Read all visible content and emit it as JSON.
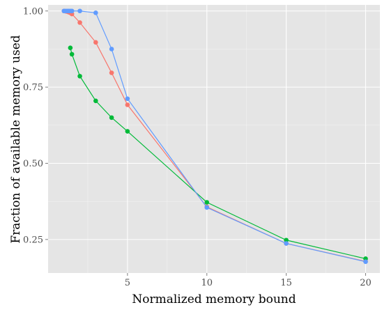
{
  "chart_data": {
    "type": "line",
    "title": "",
    "xlabel": "Normalized memory bound",
    "ylabel": "Fraction of available memory used",
    "xlim": [
      0.0,
      20.9
    ],
    "ylim": [
      0.14,
      1.02
    ],
    "x_ticks": [
      {
        "value": 5,
        "label": "5"
      },
      {
        "value": 10,
        "label": "10"
      },
      {
        "value": 15,
        "label": "15"
      },
      {
        "value": 20,
        "label": "20"
      }
    ],
    "y_ticks": [
      {
        "value": 0.25,
        "label": "0.25"
      },
      {
        "value": 0.5,
        "label": "0.50"
      },
      {
        "value": 0.75,
        "label": "0.75"
      },
      {
        "value": 1.0,
        "label": "1.00"
      }
    ],
    "grid": true,
    "legend": "none",
    "panel_color": "#e5e5e5",
    "series": [
      {
        "color": "#f8766d",
        "points": [
          {
            "x": 1.0,
            "y": 1.0
          },
          {
            "x": 1.1,
            "y": 0.999
          },
          {
            "x": 1.2,
            "y": 0.998
          },
          {
            "x": 1.3,
            "y": 0.996
          },
          {
            "x": 1.4,
            "y": 0.994
          },
          {
            "x": 1.5,
            "y": 0.99
          },
          {
            "x": 2.0,
            "y": 0.962
          },
          {
            "x": 3.0,
            "y": 0.897
          },
          {
            "x": 4.0,
            "y": 0.797
          },
          {
            "x": 5.0,
            "y": 0.692
          },
          {
            "x": 10.0,
            "y": 0.357
          },
          {
            "x": 15.0,
            "y": 0.237
          },
          {
            "x": 20.0,
            "y": 0.178
          }
        ]
      },
      {
        "color": "#00ba38",
        "points": [
          {
            "x": 1.4,
            "y": 0.879
          },
          {
            "x": 1.5,
            "y": 0.858
          },
          {
            "x": 2.0,
            "y": 0.786
          },
          {
            "x": 3.0,
            "y": 0.705
          },
          {
            "x": 4.0,
            "y": 0.65
          },
          {
            "x": 5.0,
            "y": 0.605
          },
          {
            "x": 10.0,
            "y": 0.372
          },
          {
            "x": 15.0,
            "y": 0.248
          },
          {
            "x": 20.0,
            "y": 0.187
          }
        ]
      },
      {
        "color": "#619cff",
        "points": [
          {
            "x": 1.0,
            "y": 1.0
          },
          {
            "x": 1.1,
            "y": 1.0
          },
          {
            "x": 1.2,
            "y": 1.0
          },
          {
            "x": 1.3,
            "y": 1.0
          },
          {
            "x": 1.4,
            "y": 1.0
          },
          {
            "x": 1.5,
            "y": 1.0
          },
          {
            "x": 2.0,
            "y": 1.0
          },
          {
            "x": 3.0,
            "y": 0.994
          },
          {
            "x": 4.0,
            "y": 0.875
          },
          {
            "x": 5.0,
            "y": 0.712
          },
          {
            "x": 10.0,
            "y": 0.355
          },
          {
            "x": 15.0,
            "y": 0.237
          },
          {
            "x": 20.0,
            "y": 0.177
          }
        ]
      }
    ]
  }
}
